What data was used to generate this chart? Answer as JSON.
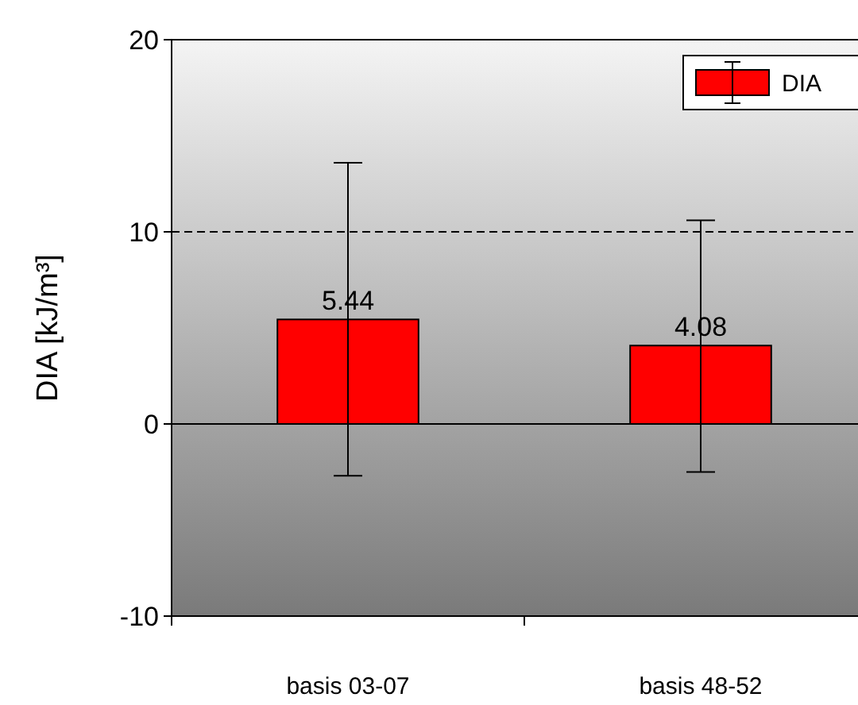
{
  "chart_data": {
    "type": "bar",
    "ylabel": "DIA [kJ/m³]",
    "categories": [
      "basis 03-07",
      "basis 48-52"
    ],
    "series": [
      {
        "name": "DIA",
        "color": "#ff0000",
        "values": [
          5.44,
          4.08
        ],
        "errors": [
          [
            -2.7,
            13.6
          ],
          [
            -2.5,
            10.6
          ]
        ]
      }
    ],
    "ylim": [
      -10,
      20
    ],
    "yticks": [
      -10,
      0,
      10,
      20
    ],
    "data_labels": true,
    "grid": false,
    "legend": "top right",
    "ref_lines": [
      {
        "axis": "y",
        "value": 10,
        "line_style": "dashed",
        "color": "#000000"
      }
    ]
  }
}
